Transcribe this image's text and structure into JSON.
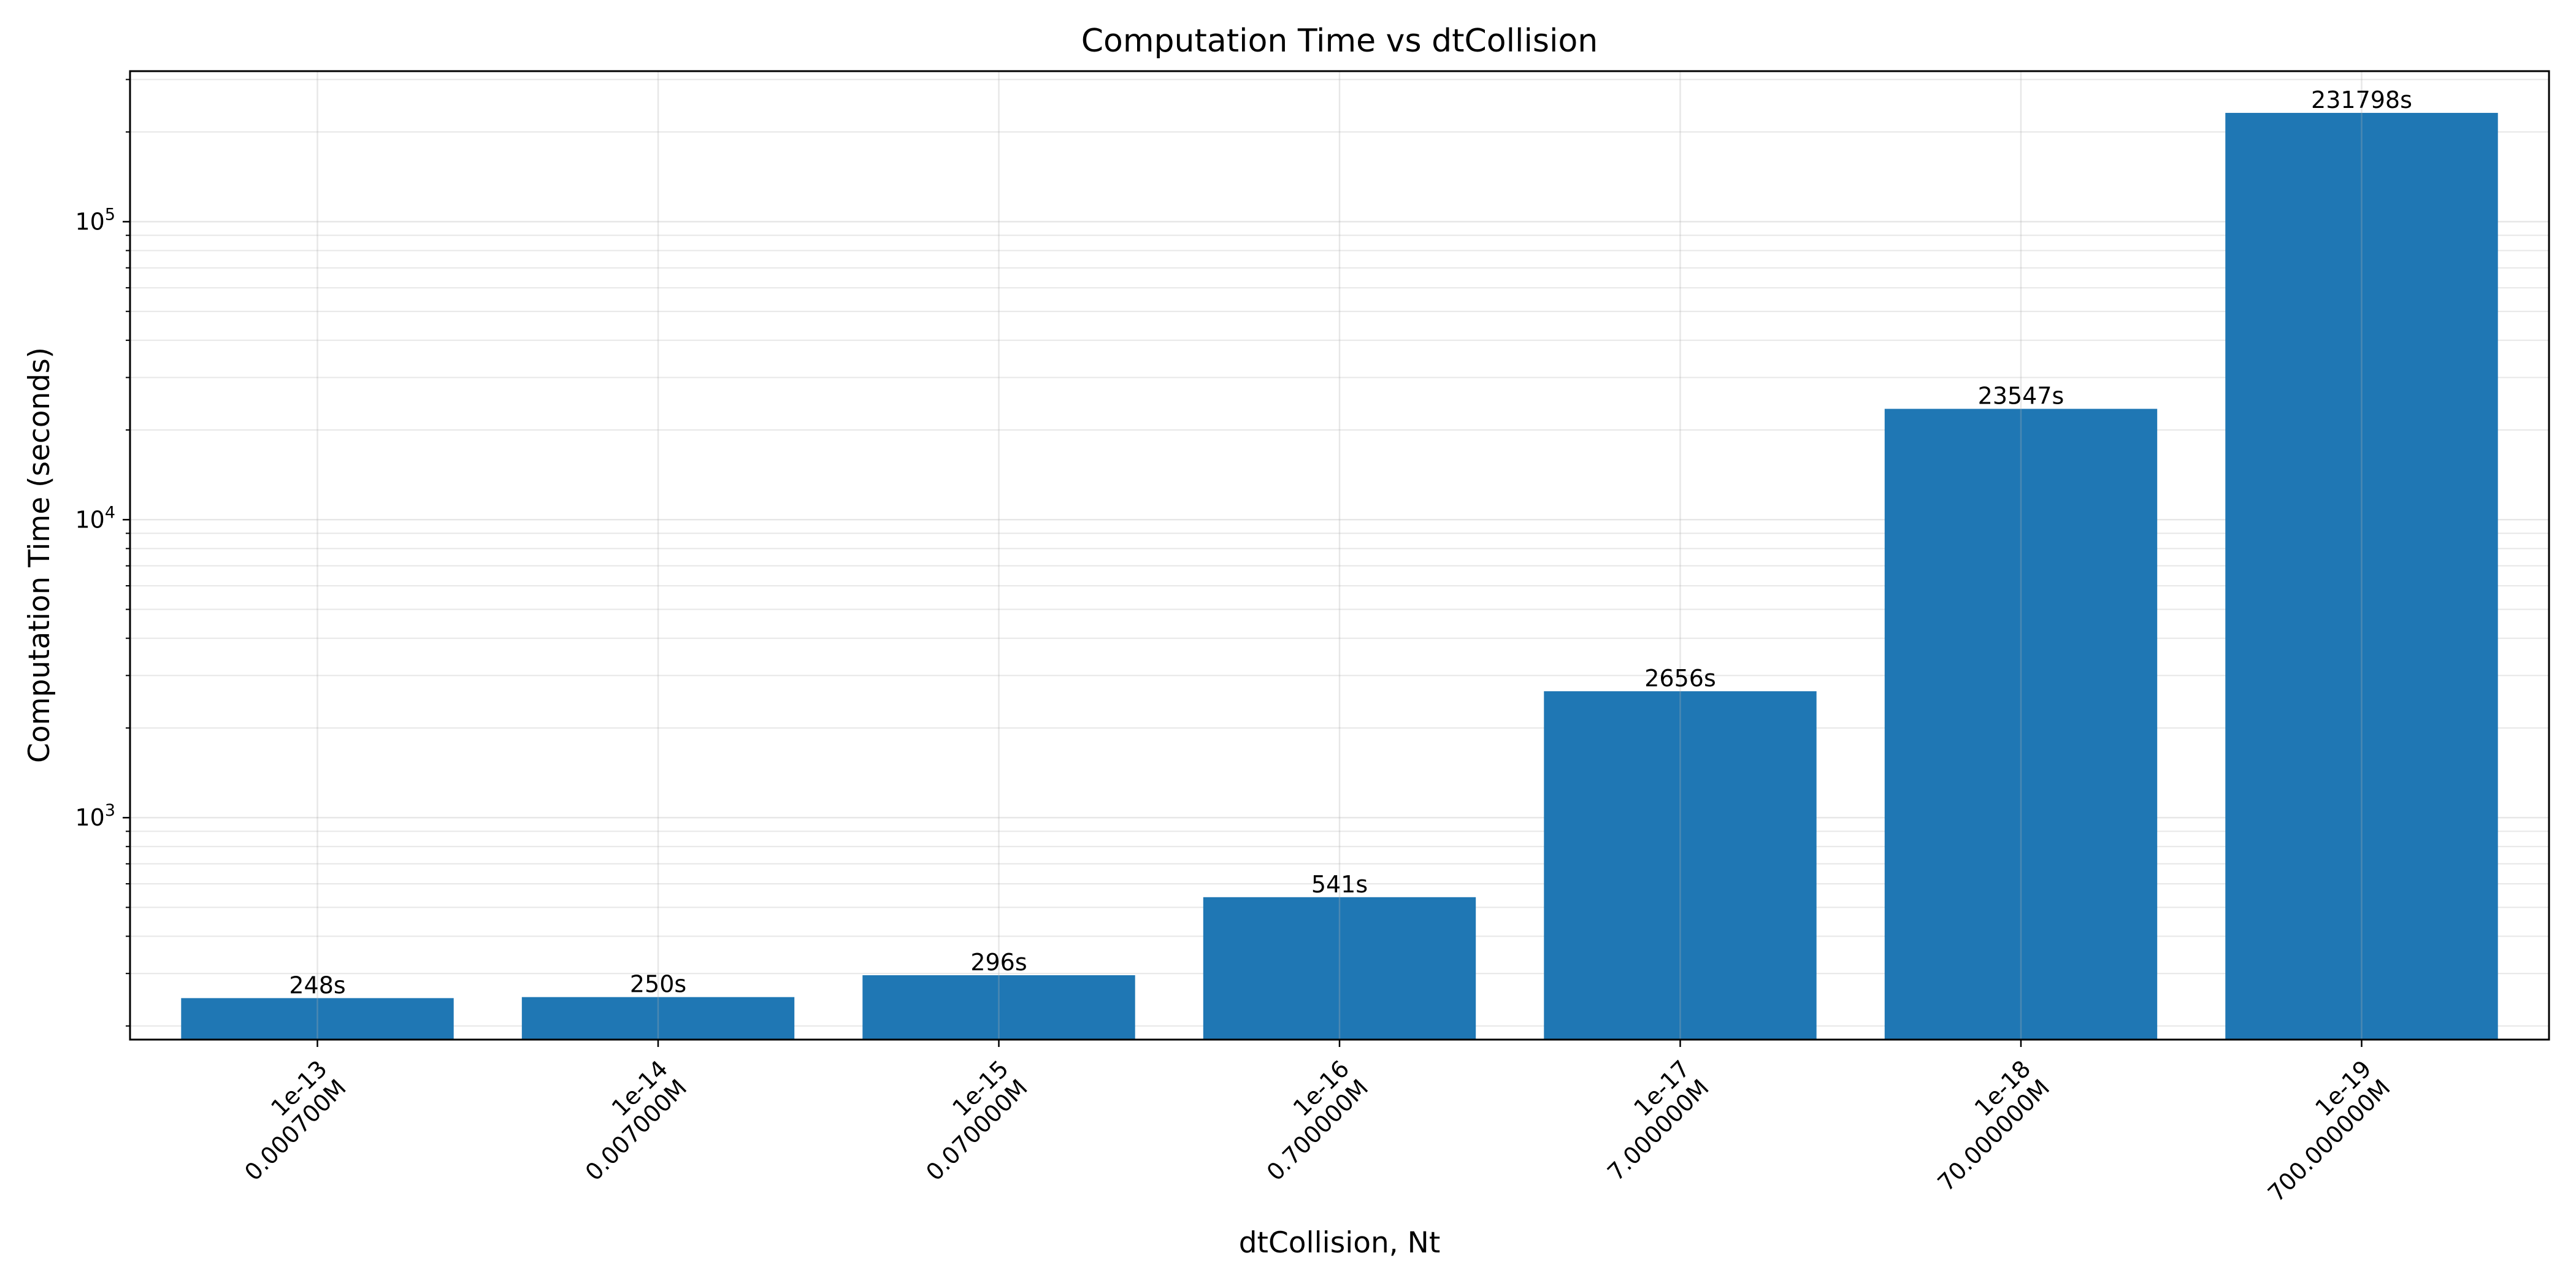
{
  "chart_data": {
    "type": "bar",
    "title": "Computation Time vs dtCollision",
    "xlabel": "dtCollision, Nt",
    "ylabel": "Computation Time (seconds)",
    "yscale": "log",
    "ylim": [
      180,
      320000
    ],
    "grid": true,
    "bar_color": "#1f77b4",
    "y_ticks": [
      {
        "base": "10",
        "exp": "3",
        "value": 1000
      },
      {
        "base": "10",
        "exp": "4",
        "value": 10000
      },
      {
        "base": "10",
        "exp": "5",
        "value": 100000
      }
    ],
    "categories": [
      {
        "line1": "1e-13",
        "line2": "0.000700M"
      },
      {
        "line1": "1e-14",
        "line2": "0.007000M"
      },
      {
        "line1": "1e-15",
        "line2": "0.070000M"
      },
      {
        "line1": "1e-16",
        "line2": "0.700000M"
      },
      {
        "line1": "1e-17",
        "line2": "7.000000M"
      },
      {
        "line1": "1e-18",
        "line2": "70.000000M"
      },
      {
        "line1": "1e-19",
        "line2": "700.000000M"
      }
    ],
    "values": [
      248,
      250,
      296,
      541,
      2656,
      23547,
      231798
    ],
    "data_labels": [
      "248s",
      "250s",
      "296s",
      "541s",
      "2656s",
      "23547s",
      "231798s"
    ]
  }
}
